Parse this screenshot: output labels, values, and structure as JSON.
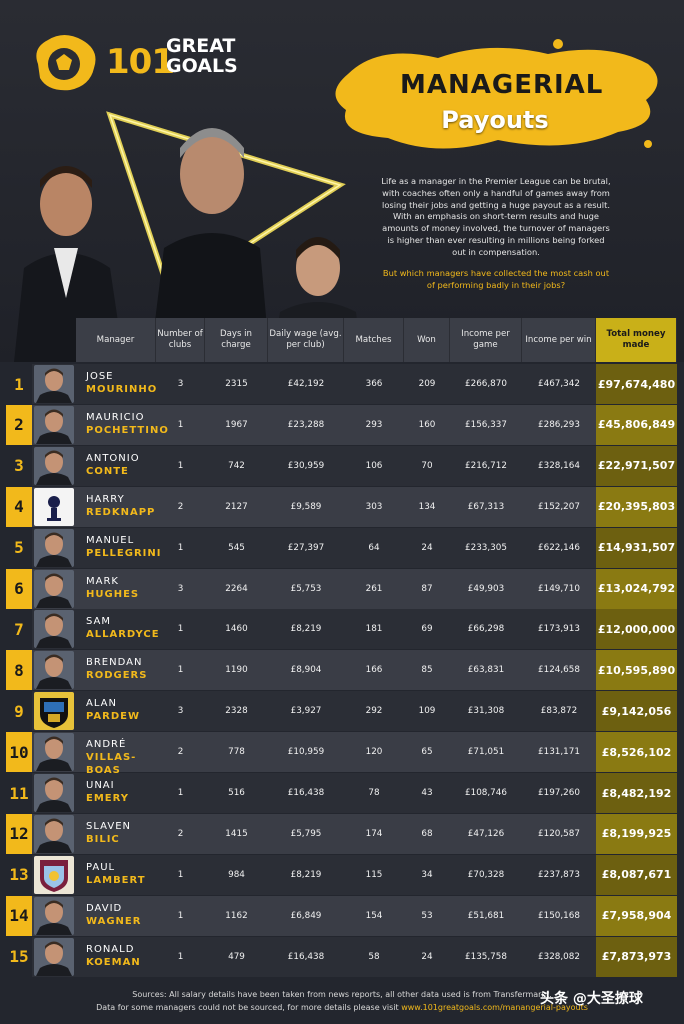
{
  "logo": {
    "number": "101",
    "line1": "GREAT",
    "line2": "GOALS"
  },
  "title": {
    "line1": "MANAGERIAL",
    "line2": "Payouts"
  },
  "intro": "Life as a manager in the Premier League can be brutal, with coaches often only a handful of games away from losing their jobs and getting a huge payout as a result. With an emphasis on short-term results and huge amounts of money involved, the turnover of managers is higher than ever resulting in millions being forked out in compensation.",
  "question": "But which managers have collected the most cash out of performing badly in their jobs?",
  "colors": {
    "accent": "#f2b91b",
    "total_col": "#c9b018",
    "row_dark": "#2b2e36",
    "row_light": "#3a3d46"
  },
  "table": {
    "headers": [
      "Manager",
      "Number of clubs",
      "Days in charge",
      "Daily wage (avg. per club)",
      "Matches",
      "Won",
      "Income per game",
      "Income per win",
      "Total money made"
    ],
    "rows": [
      {
        "rank": "1",
        "first": "JOSE",
        "last": "MOURINHO",
        "clubs": "3",
        "days": "2315",
        "wage": "£42,192",
        "matches": "366",
        "won": "209",
        "per_game": "£266,870",
        "per_win": "£467,342",
        "total": "£97,674,480",
        "photo": "person"
      },
      {
        "rank": "2",
        "first": "MAURICIO",
        "last": "POCHETTINO",
        "clubs": "1",
        "days": "1967",
        "wage": "£23,288",
        "matches": "293",
        "won": "160",
        "per_game": "£156,337",
        "per_win": "£286,293",
        "total": "£45,806,849",
        "photo": "person"
      },
      {
        "rank": "3",
        "first": "ANTONIO",
        "last": "CONTE",
        "clubs": "1",
        "days": "742",
        "wage": "£30,959",
        "matches": "106",
        "won": "70",
        "per_game": "£216,712",
        "per_win": "£328,164",
        "total": "£22,971,507",
        "photo": "person"
      },
      {
        "rank": "4",
        "first": "HARRY",
        "last": "REDKNAPP",
        "clubs": "2",
        "days": "2127",
        "wage": "£9,589",
        "matches": "303",
        "won": "134",
        "per_game": "£67,313",
        "per_win": "£152,207",
        "total": "£20,395,803",
        "photo": "spurs-crest"
      },
      {
        "rank": "5",
        "first": "MANUEL",
        "last": "PELLEGRINI",
        "clubs": "1",
        "days": "545",
        "wage": "£27,397",
        "matches": "64",
        "won": "24",
        "per_game": "£233,305",
        "per_win": "£622,146",
        "total": "£14,931,507",
        "photo": "person"
      },
      {
        "rank": "6",
        "first": "MARK",
        "last": "HUGHES",
        "clubs": "3",
        "days": "2264",
        "wage": "£5,753",
        "matches": "261",
        "won": "87",
        "per_game": "£49,903",
        "per_win": "£149,710",
        "total": "£13,024,792",
        "photo": "person"
      },
      {
        "rank": "7",
        "first": "SAM",
        "last": "ALLARDYCE",
        "clubs": "1",
        "days": "1460",
        "wage": "£8,219",
        "matches": "181",
        "won": "69",
        "per_game": "£66,298",
        "per_win": "£173,913",
        "total": "£12,000,000",
        "photo": "person"
      },
      {
        "rank": "8",
        "first": "BRENDAN",
        "last": "RODGERS",
        "clubs": "1",
        "days": "1190",
        "wage": "£8,904",
        "matches": "166",
        "won": "85",
        "per_game": "£63,831",
        "per_win": "£124,658",
        "total": "£10,595,890",
        "photo": "person"
      },
      {
        "rank": "9",
        "first": "ALAN",
        "last": "PARDEW",
        "clubs": "3",
        "days": "2328",
        "wage": "£3,927",
        "matches": "292",
        "won": "109",
        "per_game": "£31,308",
        "per_win": "£83,872",
        "total": "£9,142,056",
        "photo": "newcastle-crest"
      },
      {
        "rank": "10",
        "first": "ANDRÉ",
        "last": "VILLAS-BOAS",
        "clubs": "2",
        "days": "778",
        "wage": "£10,959",
        "matches": "120",
        "won": "65",
        "per_game": "£71,051",
        "per_win": "£131,171",
        "total": "£8,526,102",
        "photo": "person"
      },
      {
        "rank": "11",
        "first": "UNAI",
        "last": "EMERY",
        "clubs": "1",
        "days": "516",
        "wage": "£16,438",
        "matches": "78",
        "won": "43",
        "per_game": "£108,746",
        "per_win": "£197,260",
        "total": "£8,482,192",
        "photo": "person"
      },
      {
        "rank": "12",
        "first": "SLAVEN",
        "last": "BILIC",
        "clubs": "2",
        "days": "1415",
        "wage": "£5,795",
        "matches": "174",
        "won": "68",
        "per_game": "£47,126",
        "per_win": "£120,587",
        "total": "£8,199,925",
        "photo": "person"
      },
      {
        "rank": "13",
        "first": "PAUL",
        "last": "LAMBERT",
        "clubs": "1",
        "days": "984",
        "wage": "£8,219",
        "matches": "115",
        "won": "34",
        "per_game": "£70,328",
        "per_win": "£237,873",
        "total": "£8,087,671",
        "photo": "villa-crest"
      },
      {
        "rank": "14",
        "first": "DAVID",
        "last": "WAGNER",
        "clubs": "1",
        "days": "1162",
        "wage": "£6,849",
        "matches": "154",
        "won": "53",
        "per_game": "£51,681",
        "per_win": "£150,168",
        "total": "£7,958,904",
        "photo": "person"
      },
      {
        "rank": "15",
        "first": "RONALD",
        "last": "KOEMAN",
        "clubs": "1",
        "days": "479",
        "wage": "£16,438",
        "matches": "58",
        "won": "24",
        "per_game": "£135,758",
        "per_win": "£328,082",
        "total": "£7,873,973",
        "photo": "person"
      }
    ]
  },
  "footer": {
    "sources": "Sources: All salary details have been taken from news reports, all other data used is from Transfermarkt.",
    "note": "Data for some managers could not be sourced, for more details please visit",
    "link": "www.101greatgoals.com/manangerial-payouts"
  },
  "watermark": "头条 @大圣撩球"
}
